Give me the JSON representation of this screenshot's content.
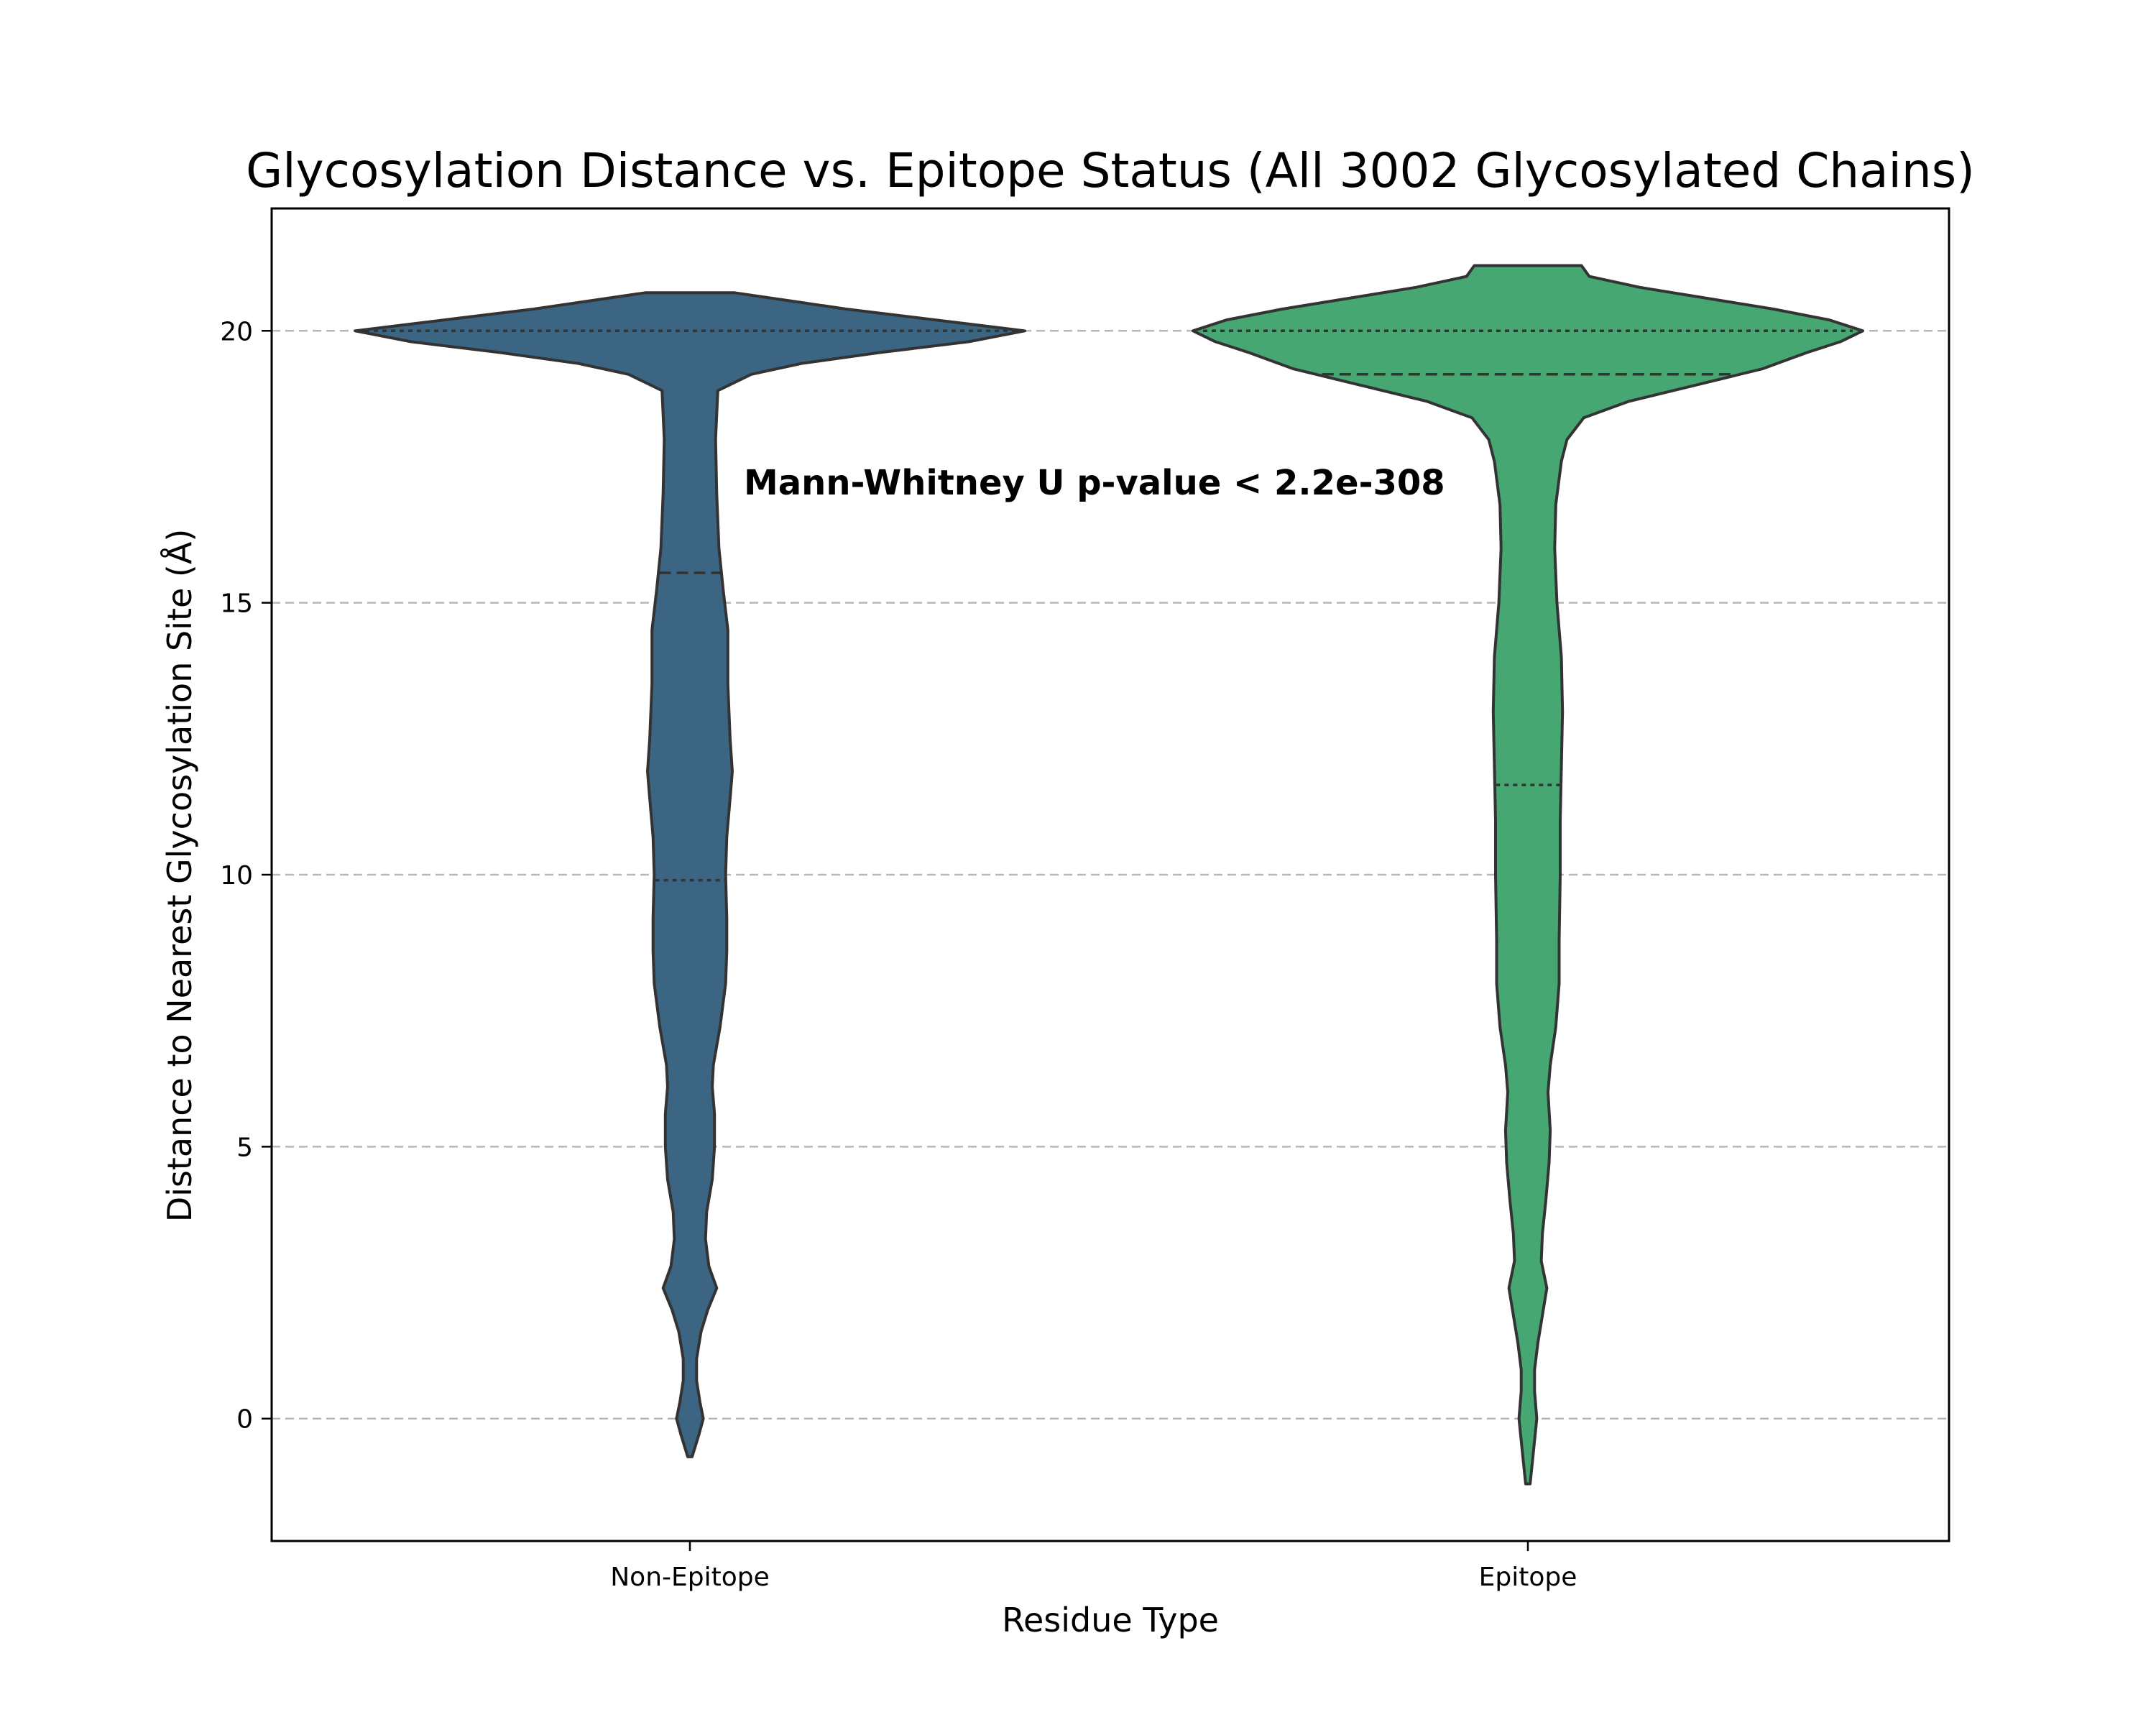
{
  "chart_data": {
    "type": "violin",
    "title": "Glycosylation Distance vs. Epitope Status (All 3002 Glycosylated Chains)",
    "xlabel": "Residue Type",
    "ylabel": "Distance to Nearest Glycosylation Site (Å)",
    "categories": [
      "Non-Epitope",
      "Epitope"
    ],
    "ylim": [
      -2.25,
      22.25
    ],
    "yticks": [
      0,
      5,
      10,
      15,
      20
    ],
    "grid": "y-dashed",
    "annotation": "Mann-Whitney U p-value < 2.2e-308",
    "series": [
      {
        "category": "Non-Epitope",
        "color": "#3b6582",
        "quartiles": {
          "q1": 9.9,
          "median": 15.55,
          "q3": 20.0
        },
        "min": -0.7,
        "max": 20.7,
        "density_profile": [
          [
            -0.7,
            0.02
          ],
          [
            -0.3,
            0.08
          ],
          [
            0.0,
            0.12
          ],
          [
            0.3,
            0.09
          ],
          [
            0.7,
            0.06
          ],
          [
            1.1,
            0.06
          ],
          [
            1.6,
            0.1
          ],
          [
            2.0,
            0.16
          ],
          [
            2.4,
            0.24
          ],
          [
            2.8,
            0.17
          ],
          [
            3.3,
            0.14
          ],
          [
            3.8,
            0.15
          ],
          [
            4.4,
            0.2
          ],
          [
            5.0,
            0.22
          ],
          [
            5.6,
            0.22
          ],
          [
            6.1,
            0.2
          ],
          [
            6.5,
            0.21
          ],
          [
            7.2,
            0.27
          ],
          [
            8.0,
            0.32
          ],
          [
            8.6,
            0.33
          ],
          [
            9.2,
            0.33
          ],
          [
            10.0,
            0.32
          ],
          [
            10.7,
            0.33
          ],
          [
            11.4,
            0.36
          ],
          [
            11.9,
            0.38
          ],
          [
            12.5,
            0.36
          ],
          [
            13.5,
            0.34
          ],
          [
            14.5,
            0.34
          ],
          [
            15.2,
            0.3
          ],
          [
            16.0,
            0.26
          ],
          [
            17.0,
            0.24
          ],
          [
            18.0,
            0.23
          ],
          [
            18.9,
            0.25
          ],
          [
            19.2,
            0.55
          ],
          [
            19.4,
            1.0
          ],
          [
            19.6,
            1.7
          ],
          [
            19.8,
            2.5
          ],
          [
            20.0,
            3.0
          ],
          [
            20.2,
            2.2
          ],
          [
            20.4,
            1.4
          ],
          [
            20.55,
            0.9
          ],
          [
            20.7,
            0.4
          ]
        ]
      },
      {
        "category": "Epitope",
        "color": "#46a773",
        "quartiles": {
          "q1": 11.65,
          "median": 19.2,
          "q3": 20.0
        },
        "min": -1.2,
        "max": 21.2,
        "density_profile": [
          [
            -1.2,
            0.02
          ],
          [
            -0.6,
            0.05
          ],
          [
            0.0,
            0.08
          ],
          [
            0.5,
            0.06
          ],
          [
            0.9,
            0.06
          ],
          [
            1.4,
            0.09
          ],
          [
            1.9,
            0.13
          ],
          [
            2.4,
            0.17
          ],
          [
            2.9,
            0.12
          ],
          [
            3.4,
            0.13
          ],
          [
            4.0,
            0.16
          ],
          [
            4.7,
            0.19
          ],
          [
            5.3,
            0.2
          ],
          [
            6.0,
            0.18
          ],
          [
            6.5,
            0.2
          ],
          [
            7.2,
            0.25
          ],
          [
            8.0,
            0.28
          ],
          [
            8.8,
            0.28
          ],
          [
            10.0,
            0.29
          ],
          [
            11.0,
            0.29
          ],
          [
            12.0,
            0.3
          ],
          [
            13.0,
            0.31
          ],
          [
            14.0,
            0.3
          ],
          [
            15.0,
            0.26
          ],
          [
            16.0,
            0.24
          ],
          [
            16.8,
            0.25
          ],
          [
            17.6,
            0.3
          ],
          [
            18.0,
            0.35
          ],
          [
            18.4,
            0.5
          ],
          [
            18.7,
            0.9
          ],
          [
            19.0,
            1.5
          ],
          [
            19.3,
            2.1
          ],
          [
            19.6,
            2.5
          ],
          [
            19.8,
            2.8
          ],
          [
            20.0,
            3.0
          ],
          [
            20.2,
            2.7
          ],
          [
            20.4,
            2.2
          ],
          [
            20.6,
            1.6
          ],
          [
            20.8,
            1.0
          ],
          [
            21.0,
            0.55
          ],
          [
            21.2,
            0.48
          ]
        ]
      }
    ]
  }
}
